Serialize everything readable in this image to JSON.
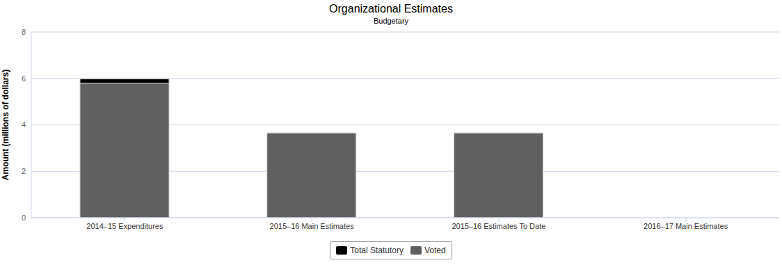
{
  "chart_data": {
    "type": "bar",
    "title": "Organizational Estimates",
    "subtitle": "Budgetary",
    "y_label": "Amount (millions of dollars)",
    "categories": [
      "2014–15 Expenditures",
      "2015–16 Main Estimates",
      "2015–16 Estimates To Date",
      "2016–17 Main Estimates"
    ],
    "series": [
      {
        "name": "Total Statutory",
        "color": "#000000",
        "values": [
          0.18,
          0,
          0,
          null
        ]
      },
      {
        "name": "Voted",
        "color": "#606060",
        "values": [
          5.8,
          3.65,
          3.65,
          null
        ]
      }
    ],
    "stacked": true,
    "ylim": [
      0,
      8
    ],
    "yticks": [
      0,
      2,
      4,
      6,
      8
    ],
    "grid": true,
    "legend": "bottom"
  }
}
